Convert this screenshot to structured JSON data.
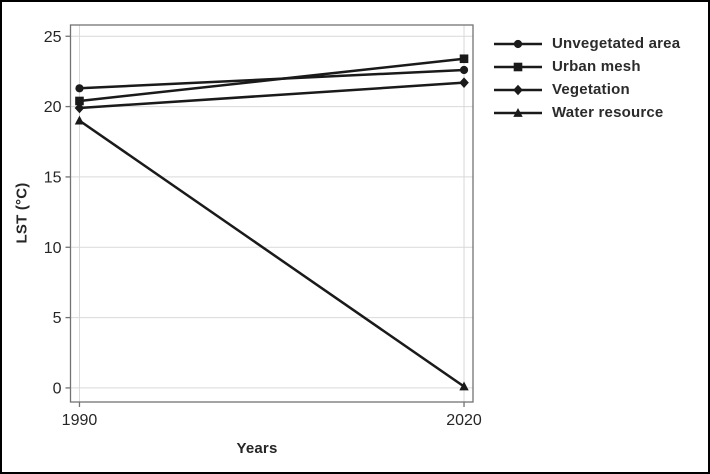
{
  "chart_data": {
    "type": "line",
    "title": "",
    "xlabel": "Years",
    "ylabel": "LST (°C)",
    "x": [
      1990,
      2020
    ],
    "x_tick_labels": [
      "1990",
      "2020"
    ],
    "y_ticks": [
      0,
      5,
      10,
      15,
      20,
      25
    ],
    "y_tick_labels": [
      "0",
      "5",
      "10",
      "15",
      "20",
      "25"
    ],
    "xlim": [
      1989.3,
      2020.7
    ],
    "ylim": [
      -1,
      25.8
    ],
    "grid": true,
    "legend_position": "right-outside",
    "series": [
      {
        "name": "Unvegetated area",
        "marker": "circle",
        "values": [
          21.3,
          22.6
        ]
      },
      {
        "name": "Urban mesh",
        "marker": "square",
        "values": [
          20.4,
          23.4
        ]
      },
      {
        "name": "Vegetation",
        "marker": "diamond",
        "values": [
          19.9,
          21.7
        ]
      },
      {
        "name": "Water resource",
        "marker": "triangle",
        "values": [
          19.0,
          0.1
        ]
      }
    ],
    "colors": {
      "series_line": "#1a1a1a",
      "marker_fill": "#1a1a1a",
      "grid": "#d9d9d9",
      "spine": "#737373",
      "tick": "#737373",
      "tick_text": "#262626",
      "legend_text": "#2b2b2b",
      "frame_border": "#000000",
      "background": "#ffffff"
    }
  }
}
